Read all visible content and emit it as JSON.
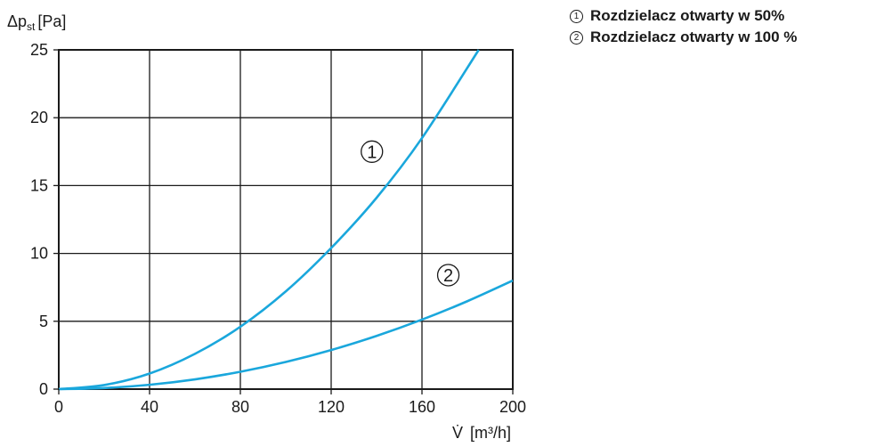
{
  "chart_data": {
    "type": "line",
    "ylabel": "Δp",
    "ylabel_sub": "st",
    "ylabel_unit": "[Pa]",
    "xlabel": "V̇",
    "xlabel_unit": "[m³/h]",
    "xlim": [
      0,
      200
    ],
    "ylim": [
      0,
      25
    ],
    "x_ticks": [
      0,
      40,
      80,
      120,
      160,
      200
    ],
    "y_ticks": [
      0,
      5,
      10,
      15,
      20,
      25
    ],
    "grid": true,
    "line_color": "#1aa7dc",
    "series": [
      {
        "name": "Rozdzielacz otwarty w 50%",
        "marker": "1",
        "x": [
          0,
          20,
          40,
          60,
          80,
          100,
          120,
          140,
          160,
          185
        ],
        "y": [
          0,
          0.3,
          1.15,
          2.6,
          4.6,
          7.2,
          10.4,
          14.1,
          18.5,
          25.0
        ]
      },
      {
        "name": "Rozdzielacz otwarty w 100 %",
        "marker": "2",
        "x": [
          0,
          20,
          40,
          60,
          80,
          100,
          120,
          140,
          160,
          180,
          200
        ],
        "y": [
          0,
          0.08,
          0.32,
          0.72,
          1.28,
          2.0,
          2.88,
          3.92,
          5.12,
          6.48,
          8.0
        ]
      }
    ]
  },
  "legend": [
    {
      "num": "1",
      "label": "Rozdzielacz otwarty w 50%"
    },
    {
      "num": "2",
      "label": "Rozdzielacz otwarty w 100 %"
    }
  ]
}
